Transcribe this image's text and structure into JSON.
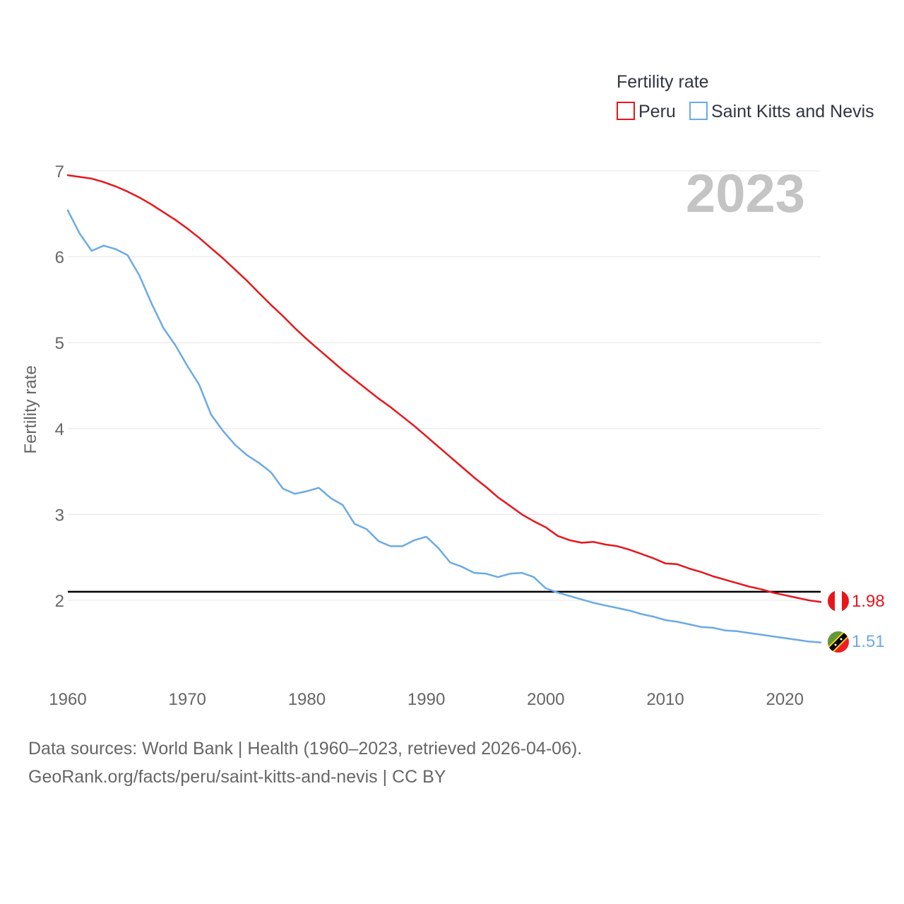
{
  "source_line_1": "Data sources: World Bank | Health (1960–2023, retrieved 2026-04-06).",
  "source_line_2": "GeoRank.org/facts/peru/saint-kitts-and-nevis | CC BY",
  "chart_data": {
    "type": "line",
    "title": "",
    "legend_title": "Fertility rate",
    "legend_position": "top-right",
    "year_label": "2023",
    "xlabel": "",
    "ylabel": "Fertility rate",
    "xlim": [
      1960,
      2023
    ],
    "ylim": [
      1.2,
      7.0
    ],
    "x_ticks": [
      1960,
      1970,
      1980,
      1990,
      2000,
      2010,
      2020
    ],
    "y_ticks": [
      2,
      3,
      4,
      5,
      6,
      7
    ],
    "grid": true,
    "reference_line": {
      "value": 2.1,
      "color": "#000000"
    },
    "x": [
      1960,
      1961,
      1962,
      1963,
      1964,
      1965,
      1966,
      1967,
      1968,
      1969,
      1970,
      1971,
      1972,
      1973,
      1974,
      1975,
      1976,
      1977,
      1978,
      1979,
      1980,
      1981,
      1982,
      1983,
      1984,
      1985,
      1986,
      1987,
      1988,
      1989,
      1990,
      1991,
      1992,
      1993,
      1994,
      1995,
      1996,
      1997,
      1998,
      1999,
      2000,
      2001,
      2002,
      2003,
      2004,
      2005,
      2006,
      2007,
      2008,
      2009,
      2010,
      2011,
      2012,
      2013,
      2014,
      2015,
      2016,
      2017,
      2018,
      2019,
      2020,
      2021,
      2022,
      2023
    ],
    "series": [
      {
        "name": "Peru",
        "color": "#e8161c",
        "end_label": "1.98",
        "flag": "peru-flag",
        "values": [
          6.95,
          6.93,
          6.91,
          6.87,
          6.82,
          6.76,
          6.69,
          6.61,
          6.52,
          6.43,
          6.33,
          6.22,
          6.1,
          5.98,
          5.85,
          5.72,
          5.58,
          5.44,
          5.31,
          5.17,
          5.04,
          4.92,
          4.8,
          4.68,
          4.57,
          4.46,
          4.35,
          4.25,
          4.14,
          4.03,
          3.91,
          3.79,
          3.67,
          3.55,
          3.43,
          3.32,
          3.2,
          3.1,
          3.0,
          2.92,
          2.85,
          2.75,
          2.7,
          2.67,
          2.68,
          2.65,
          2.63,
          2.59,
          2.54,
          2.49,
          2.43,
          2.42,
          2.37,
          2.33,
          2.28,
          2.24,
          2.2,
          2.16,
          2.13,
          2.09,
          2.06,
          2.03,
          2.0,
          1.98
        ]
      },
      {
        "name": "Saint Kitts and Nevis",
        "color": "#6aaae6",
        "end_label": "1.51",
        "flag": "saint-kitts-and-nevis-flag",
        "values": [
          6.54,
          6.27,
          6.07,
          6.13,
          6.09,
          6.02,
          5.78,
          5.46,
          5.17,
          4.97,
          4.73,
          4.51,
          4.16,
          3.97,
          3.81,
          3.69,
          3.6,
          3.49,
          3.3,
          3.24,
          3.27,
          3.31,
          3.19,
          3.11,
          2.89,
          2.83,
          2.69,
          2.63,
          2.63,
          2.7,
          2.74,
          2.61,
          2.44,
          2.39,
          2.32,
          2.31,
          2.27,
          2.31,
          2.32,
          2.27,
          2.14,
          2.09,
          2.05,
          2.01,
          1.97,
          1.94,
          1.91,
          1.88,
          1.84,
          1.81,
          1.77,
          1.75,
          1.72,
          1.69,
          1.68,
          1.65,
          1.64,
          1.62,
          1.6,
          1.58,
          1.56,
          1.54,
          1.52,
          1.51
        ]
      }
    ]
  }
}
